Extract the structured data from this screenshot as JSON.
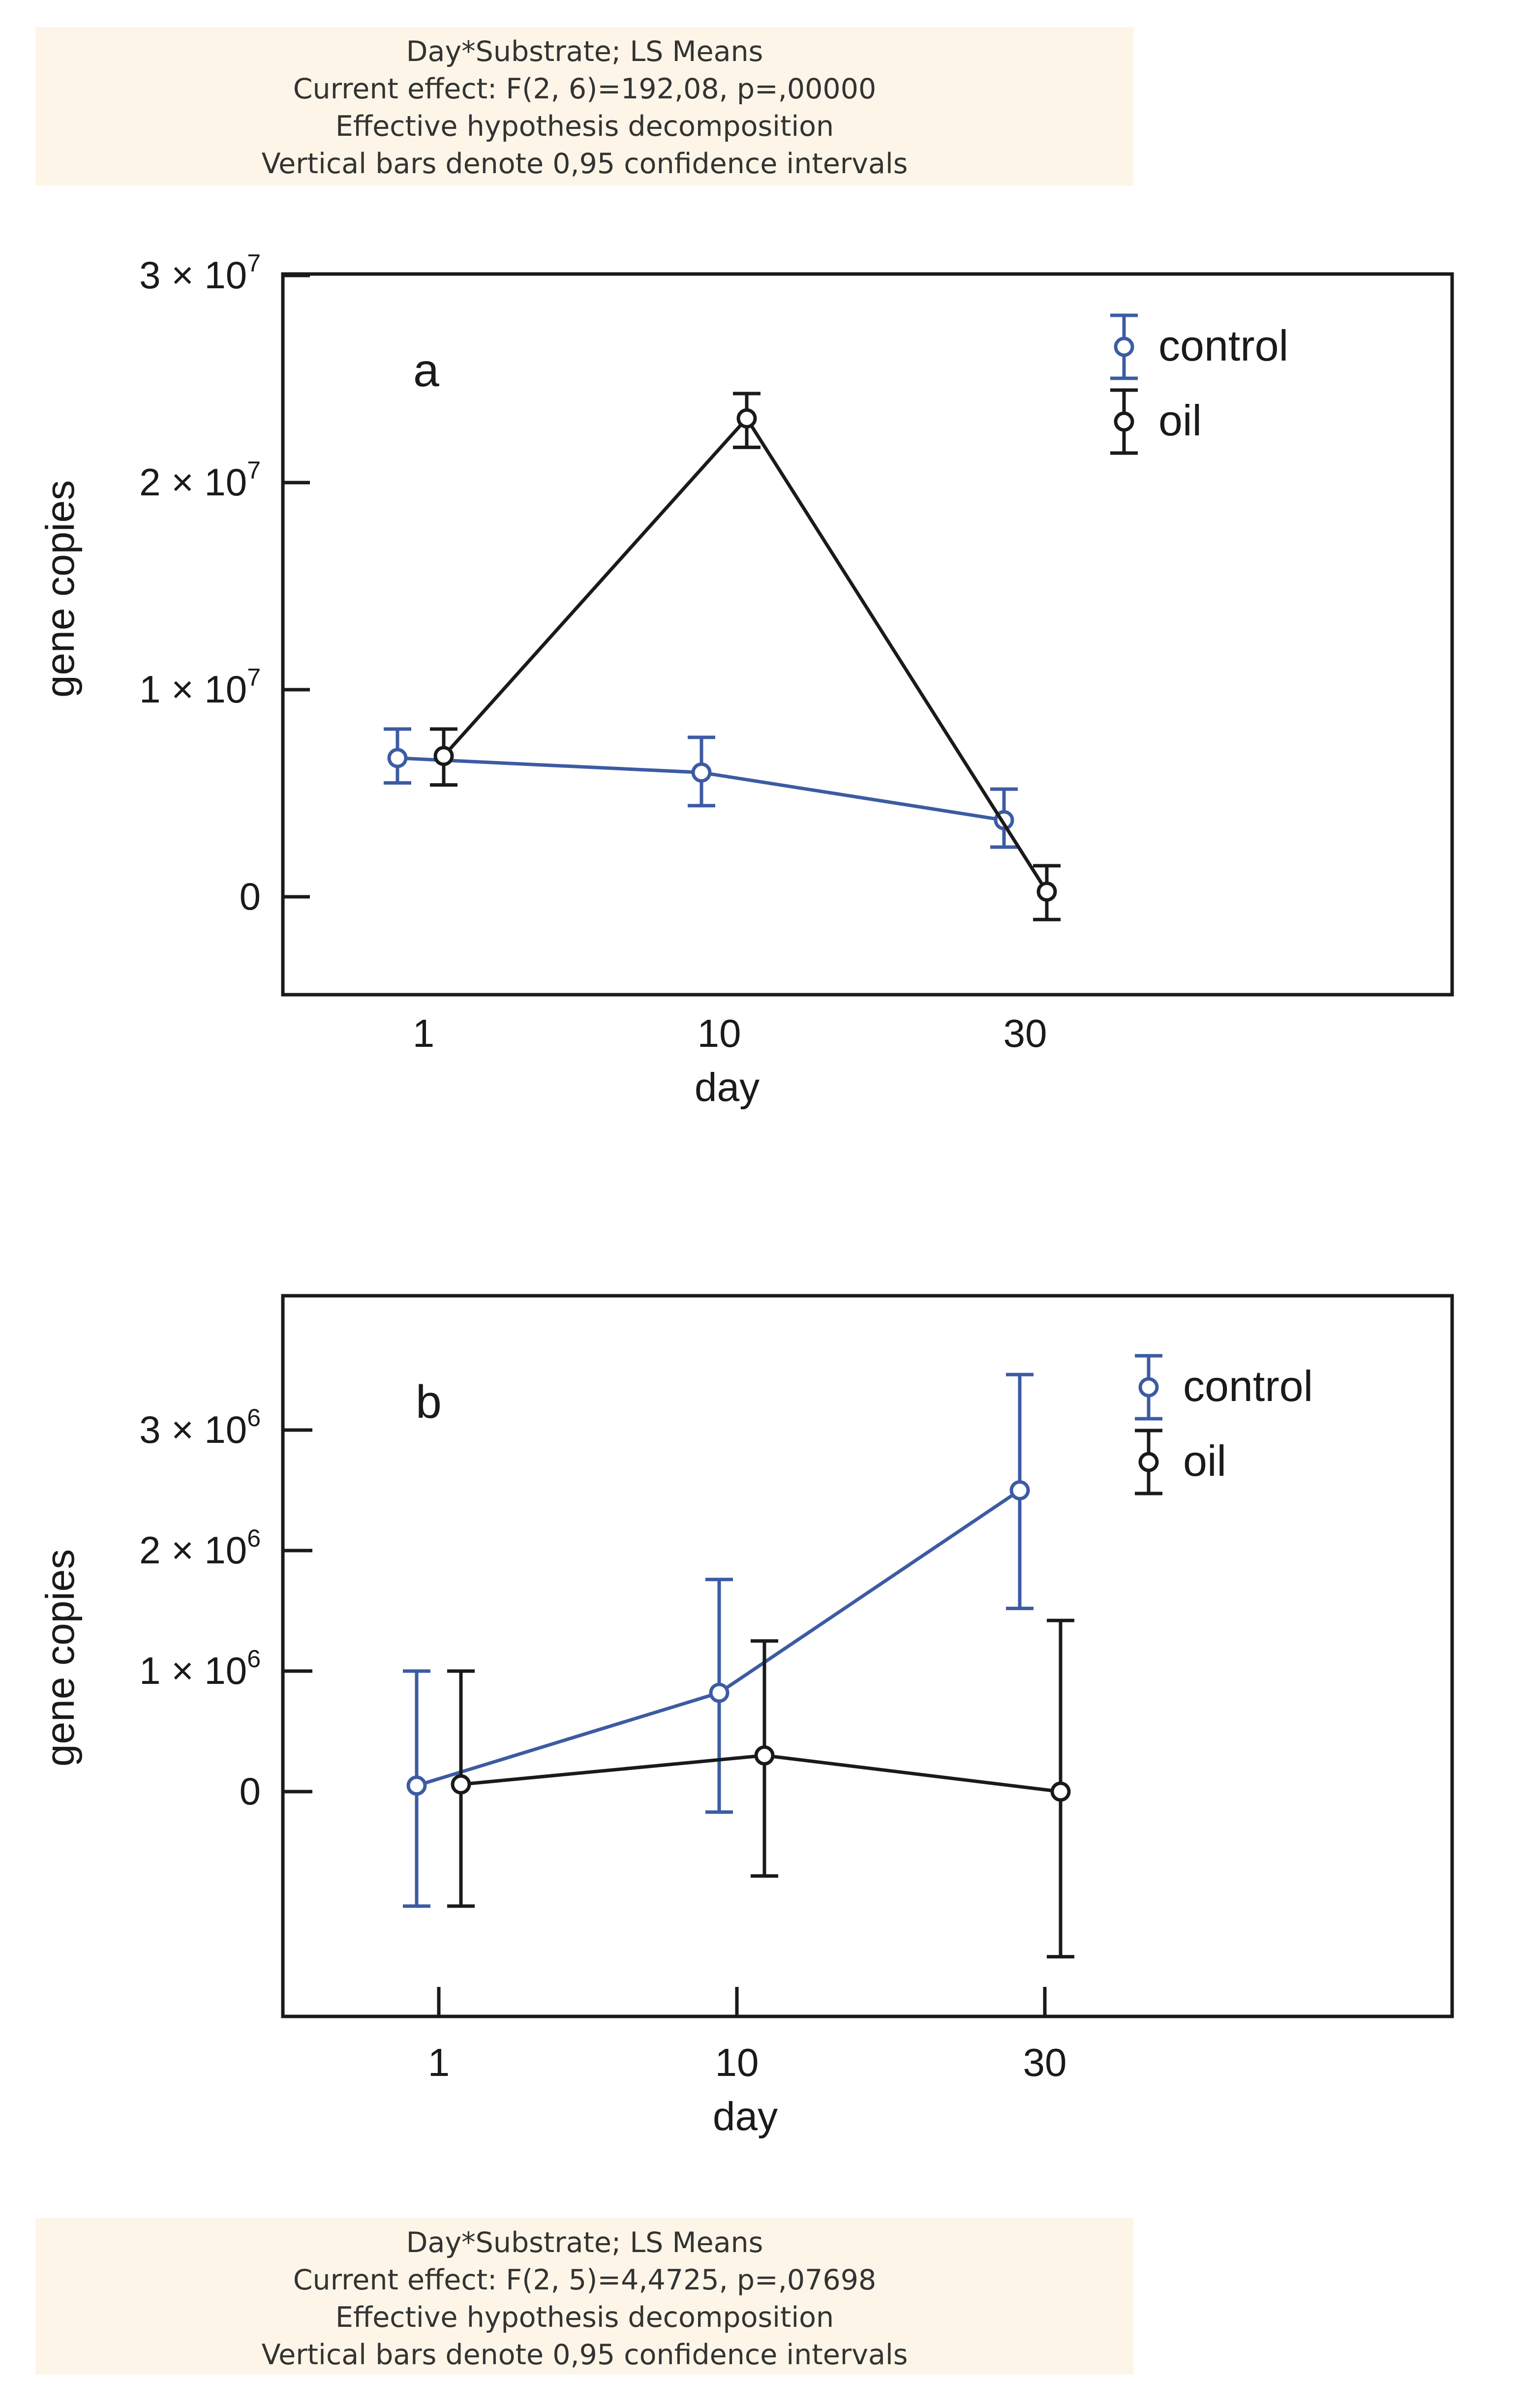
{
  "stats_top": {
    "line1": "Day*Substrate; LS Means",
    "line2": "Current effect: F(2, 6)=192,08, p=,00000",
    "line3": "Effective hypothesis decomposition",
    "line4": "Vertical bars denote 0,95 confidence intervals"
  },
  "stats_bottom": {
    "line1": "Day*Substrate; LS Means",
    "line2": "Current effect: F(2, 5)=4,4725, p=,07698",
    "line3": "Effective hypothesis decomposition",
    "line4": "Vertical bars denote 0,95 confidence intervals"
  },
  "colors": {
    "control": "#3c5ba3",
    "oil": "#1a1a1a",
    "stats_bg": "#fdf6e8"
  },
  "chart_data": [
    {
      "type": "line",
      "panel_label": "a",
      "xlabel": "day",
      "ylabel": "gene copies",
      "categories": [
        "1",
        "10",
        "30"
      ],
      "ylim": [
        -5000000,
        30000000
      ],
      "yticks": [
        {
          "value": 0,
          "label": "0"
        },
        {
          "value": 10000000,
          "label": "1 × 10",
          "exp": "7"
        },
        {
          "value": 20000000,
          "label": "2 × 10",
          "exp": "7"
        },
        {
          "value": 30000000,
          "label": "3 × 10",
          "exp": "7"
        }
      ],
      "legend": "top-right",
      "series": [
        {
          "name": "control",
          "values": [
            6700000,
            6000000,
            3700000
          ],
          "lower": [
            5500000,
            4400000,
            2400000
          ],
          "upper": [
            8100000,
            7700000,
            5200000
          ]
        },
        {
          "name": "oil",
          "values": [
            6800000,
            23100000,
            250000
          ],
          "lower": [
            5400000,
            21700000,
            -1100000
          ],
          "upper": [
            8100000,
            24300000,
            1500000
          ]
        }
      ]
    },
    {
      "type": "line",
      "panel_label": "b",
      "xlabel": "day",
      "ylabel": "gene copies",
      "categories": [
        "1",
        "10",
        "30"
      ],
      "ylim": [
        -1900000,
        4100000
      ],
      "yticks": [
        {
          "value": 0,
          "label": "0"
        },
        {
          "value": 1000000,
          "label": "1 × 10",
          "exp": "6"
        },
        {
          "value": 2000000,
          "label": "2 × 10",
          "exp": "6"
        },
        {
          "value": 3000000,
          "label": "3 × 10",
          "exp": "6"
        }
      ],
      "legend": "top-right",
      "series": [
        {
          "name": "control",
          "values": [
            50000,
            820000,
            2500000
          ],
          "lower": [
            -950000,
            -170000,
            1520000
          ],
          "upper": [
            1000000,
            1760000,
            3460000
          ]
        },
        {
          "name": "oil",
          "values": [
            60000,
            300000,
            0
          ],
          "lower": [
            -950000,
            -700000,
            -1370000
          ],
          "upper": [
            1000000,
            1250000,
            1420000
          ]
        }
      ]
    }
  ]
}
